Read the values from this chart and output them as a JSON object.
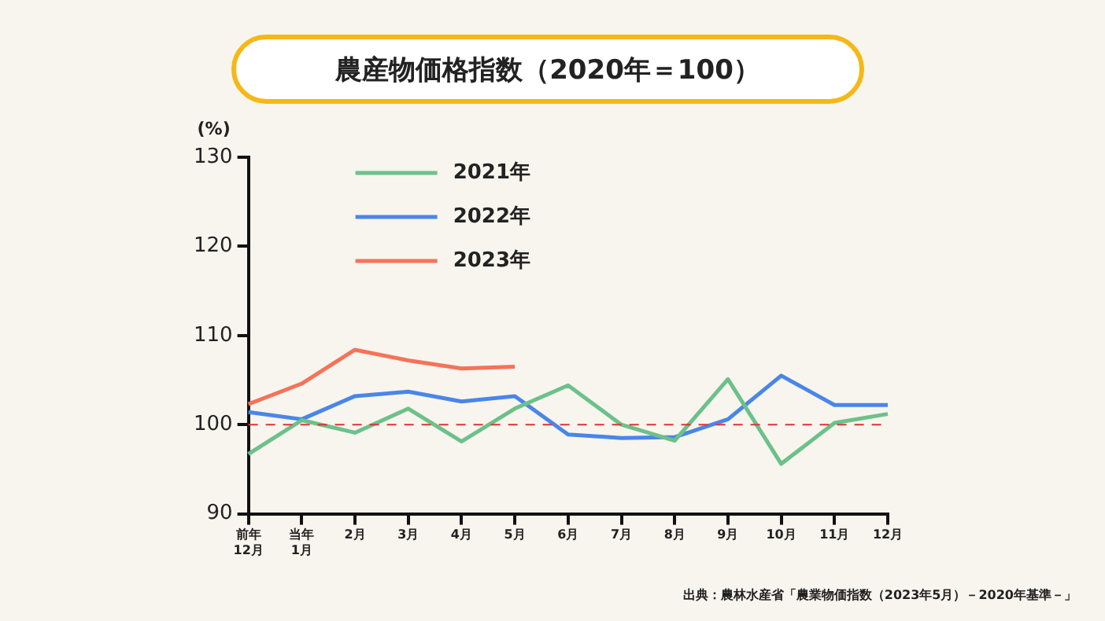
{
  "chart_data": {
    "type": "line",
    "title": "農産物価格指数（2020年＝100）",
    "ylabel": "(%)",
    "annotations": [
      "出典：農林水産省「農業物価指数（2023年5月）－2020年基準－」"
    ],
    "categories": [
      "前年\n12月",
      "当年\n1月",
      "2月",
      "3月",
      "4月",
      "5月",
      "6月",
      "7月",
      "8月",
      "9月",
      "10月",
      "11月",
      "12月"
    ],
    "series": [
      {
        "name": "2021年",
        "color": "#6cc18b",
        "values": [
          96.7,
          100.5,
          99.1,
          101.8,
          98.1,
          101.8,
          104.4,
          100,
          98.2,
          105.1,
          95.6,
          100.2,
          101.2
        ]
      },
      {
        "name": "2022年",
        "color": "#4a86e8",
        "values": [
          101.4,
          100.6,
          103.2,
          103.7,
          102.6,
          103.2,
          98.9,
          98.5,
          98.6,
          100.6,
          105.5,
          102.2,
          102.2
        ]
      },
      {
        "name": "2023年",
        "color": "#f4735a",
        "values": [
          102.3,
          104.6,
          108.4,
          107.2,
          106.3,
          106.5,
          null,
          null,
          null,
          null,
          null,
          null,
          null
        ]
      }
    ],
    "ylim": [
      90,
      130
    ],
    "yticks": [
      90,
      100,
      110,
      120,
      130
    ],
    "grid": false,
    "legend": "top left",
    "marker": "none",
    "line_style": "solid",
    "ref_lines": [
      {
        "axis": "y",
        "value": 100,
        "label": null,
        "color": "#dd3333",
        "line_style": "dashed"
      }
    ]
  }
}
